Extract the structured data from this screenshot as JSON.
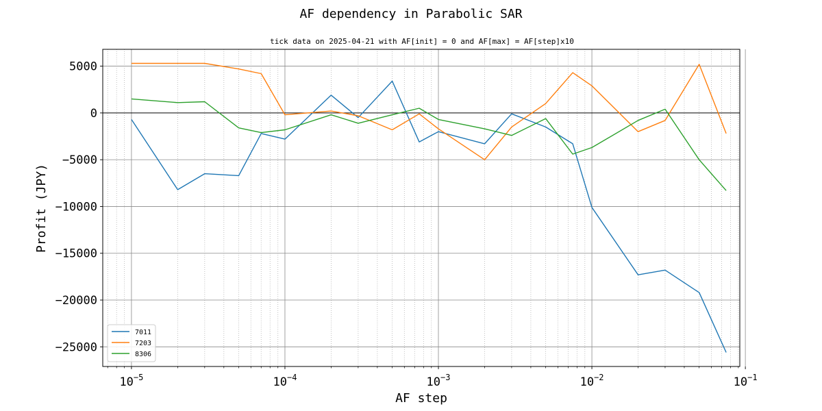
{
  "chart_data": {
    "type": "line",
    "title": "AF dependency in Parabolic SAR",
    "subtitle": "tick data on 2025-04-21 with AF[init] = 0 and AF[max] = AF[step]x10",
    "xlabel": "AF step",
    "ylabel": "Profit (JPY)",
    "xscale": "log",
    "xlim": [
      6.5e-06,
      0.092
    ],
    "ylim": [
      -27100,
      6800
    ],
    "grid": true,
    "legend_position": "lower-left",
    "x": [
      1e-05,
      2e-05,
      3e-05,
      5e-05,
      7e-05,
      0.0001,
      0.0002,
      0.0003,
      0.0005,
      0.00075,
      0.001,
      0.002,
      0.003,
      0.005,
      0.0075,
      0.01,
      0.02,
      0.03,
      0.05,
      0.075
    ],
    "x_ticks": [
      {
        "base": "10",
        "exp": "−5",
        "value": 1e-05
      },
      {
        "base": "10",
        "exp": "−4",
        "value": 0.0001
      },
      {
        "base": "10",
        "exp": "−3",
        "value": 0.001
      },
      {
        "base": "10",
        "exp": "−2",
        "value": 0.01
      },
      {
        "base": "10",
        "exp": "−1",
        "value": 0.1
      }
    ],
    "y_ticks": [
      {
        "label": "5000",
        "value": 5000
      },
      {
        "label": "0",
        "value": 0
      },
      {
        "label": "−5000",
        "value": -5000
      },
      {
        "label": "−10000",
        "value": -10000
      },
      {
        "label": "−15000",
        "value": -15000
      },
      {
        "label": "−20000",
        "value": -20000
      },
      {
        "label": "−25000",
        "value": -25000
      }
    ],
    "series": [
      {
        "name": "7011",
        "color": "#1f77b4",
        "values": [
          -700,
          -8200,
          -6500,
          -6700,
          -2200,
          -2800,
          1900,
          -500,
          3400,
          -3100,
          -2000,
          -3300,
          -100,
          -1500,
          -3300,
          -10100,
          -17300,
          -16800,
          -19200,
          -25600
        ]
      },
      {
        "name": "7203",
        "color": "#ff7f0e",
        "values": [
          5300,
          5300,
          5300,
          4700,
          4200,
          -200,
          200,
          -300,
          -1800,
          -100,
          -1700,
          -5000,
          -1500,
          1000,
          4300,
          2900,
          -2000,
          -800,
          5200,
          -2200
        ]
      },
      {
        "name": "8306",
        "color": "#2ca02c",
        "values": [
          1500,
          1100,
          1200,
          -1600,
          -2100,
          -1800,
          -200,
          -1100,
          -200,
          500,
          -700,
          -1700,
          -2400,
          -600,
          -4400,
          -3700,
          -800,
          400,
          -5000,
          -8300
        ]
      }
    ]
  }
}
